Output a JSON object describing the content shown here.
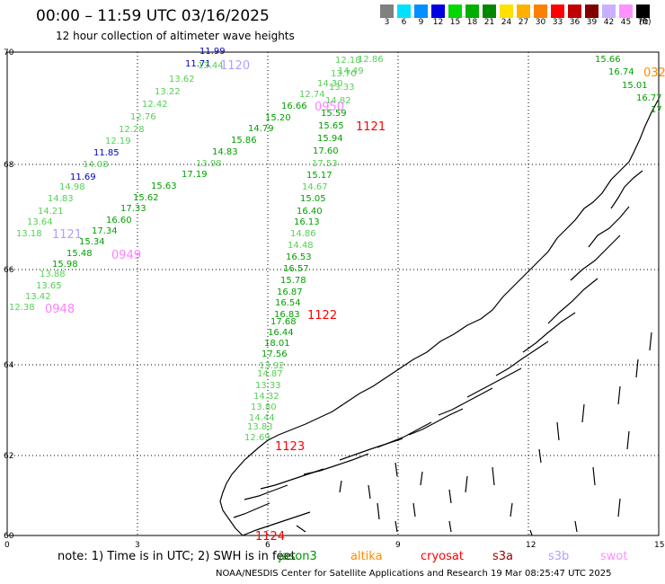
{
  "title": "00:00 – 11:59 UTC 03/16/2025",
  "subtitle": "12 hour collection of altimeter wave heights",
  "colorbar": {
    "unit": "(ft)",
    "swatches": [
      {
        "label": "3",
        "color": "#808080"
      },
      {
        "label": "6",
        "color": "#00e0ff"
      },
      {
        "label": "9",
        "color": "#0090ff"
      },
      {
        "label": "12",
        "color": "#0000e0"
      },
      {
        "label": "15",
        "color": "#00d800"
      },
      {
        "label": "18",
        "color": "#00b000"
      },
      {
        "label": "21",
        "color": "#008800"
      },
      {
        "label": "24",
        "color": "#ffe000"
      },
      {
        "label": "27",
        "color": "#ffb000"
      },
      {
        "label": "30",
        "color": "#ff8000"
      },
      {
        "label": "33",
        "color": "#ff0000"
      },
      {
        "label": "36",
        "color": "#c00000"
      },
      {
        "label": "39",
        "color": "#800000"
      },
      {
        "label": "42",
        "color": "#c8b0ff"
      },
      {
        "label": "45",
        "color": "#ff90ff"
      },
      {
        "label": "70",
        "color": "#000000"
      }
    ]
  },
  "axes": {
    "lat_labels": [
      "70",
      "68",
      "66",
      "64",
      "62",
      "60"
    ],
    "lon_labels": [
      "0",
      "3",
      "6",
      "9",
      "12",
      "15"
    ]
  },
  "note": "note:  1) Time is in UTC;  2) SWH is in feet",
  "satellites": [
    {
      "name": "jason3",
      "color": "#009000"
    },
    {
      "name": "altika",
      "color": "#ff8c00"
    },
    {
      "name": "cryosat",
      "color": "#ff0000"
    },
    {
      "name": "s3a",
      "color": "#a00000"
    },
    {
      "name": "s3b",
      "color": "#b0a0ff"
    },
    {
      "name": "swot",
      "color": "#ff90ff"
    }
  ],
  "footer": "NOAA/NESDIS Center for Satellite Applications and Research    19 Mar 08:25:47 UTC 2025",
  "wave_labels": [
    {
      "text": "11.99",
      "color": "#0000c0"
    },
    {
      "text": "11.71",
      "color": "#0000c0"
    },
    {
      "text": "13.44",
      "color": "#55d055"
    },
    {
      "text": "1120",
      "color": "#b0a0ff",
      "big": true
    },
    {
      "text": "13.62",
      "color": "#55d055"
    },
    {
      "text": "13.22",
      "color": "#55d055"
    },
    {
      "text": "12.42",
      "color": "#55d055"
    },
    {
      "text": "12.76",
      "color": "#55d055"
    },
    {
      "text": "12.28",
      "color": "#55d055"
    },
    {
      "text": "12.19",
      "color": "#55d055"
    },
    {
      "text": "11.85",
      "color": "#0000c0"
    },
    {
      "text": "14.08",
      "color": "#55d055"
    },
    {
      "text": "11.69",
      "color": "#0000c0"
    },
    {
      "text": "14.98",
      "color": "#55d055"
    },
    {
      "text": "14.83",
      "color": "#55d055"
    },
    {
      "text": "14.21",
      "color": "#55d055"
    },
    {
      "text": "13.64",
      "color": "#55d055"
    },
    {
      "text": "13.18",
      "color": "#55d055"
    },
    {
      "text": "1121",
      "color": "#b0a0ff",
      "big": true
    },
    {
      "text": "17.34",
      "color": "#00a000"
    },
    {
      "text": "15.34",
      "color": "#00a000"
    },
    {
      "text": "15.48",
      "color": "#00a000"
    },
    {
      "text": "0949",
      "color": "#ff80ff",
      "big": true
    },
    {
      "text": "15.98",
      "color": "#00a000"
    },
    {
      "text": "13.88",
      "color": "#55d055"
    },
    {
      "text": "13.65",
      "color": "#55d055"
    },
    {
      "text": "13.42",
      "color": "#55d055"
    },
    {
      "text": "12.38",
      "color": "#55d055"
    },
    {
      "text": "0948",
      "color": "#ff80ff",
      "big": true
    },
    {
      "text": "16.60",
      "color": "#00a000"
    },
    {
      "text": "17.33",
      "color": "#00a000"
    },
    {
      "text": "15.62",
      "color": "#00a000"
    },
    {
      "text": "15.63",
      "color": "#00a000"
    },
    {
      "text": "17.19",
      "color": "#00a000"
    },
    {
      "text": "13.98",
      "color": "#55d055"
    },
    {
      "text": "14.83",
      "color": "#00a000"
    },
    {
      "text": "15.86",
      "color": "#00a000"
    },
    {
      "text": "14.79",
      "color": "#00a000"
    },
    {
      "text": "15.20",
      "color": "#00a000"
    },
    {
      "text": "16.66",
      "color": "#00a000"
    },
    {
      "text": "12.74",
      "color": "#55d055"
    },
    {
      "text": "14.30",
      "color": "#55d055"
    },
    {
      "text": "12.18",
      "color": "#55d055"
    },
    {
      "text": "12.86",
      "color": "#55d055"
    },
    {
      "text": "14.49",
      "color": "#55d055"
    },
    {
      "text": "13.70",
      "color": "#55d055"
    },
    {
      "text": "13.33",
      "color": "#55d055"
    },
    {
      "text": "14.82",
      "color": "#55d055"
    },
    {
      "text": "0950",
      "color": "#ff80ff",
      "big": true
    },
    {
      "text": "15.59",
      "color": "#00a000"
    },
    {
      "text": "15.65",
      "color": "#00a000"
    },
    {
      "text": "1121",
      "color": "#ff0000",
      "big": true
    },
    {
      "text": "15.94",
      "color": "#00a000"
    },
    {
      "text": "17.60",
      "color": "#00a000"
    },
    {
      "text": "17.53",
      "color": "#55d055"
    },
    {
      "text": "15.17",
      "color": "#00a000"
    },
    {
      "text": "14.67",
      "color": "#55d055"
    },
    {
      "text": "15.05",
      "color": "#00a000"
    },
    {
      "text": "16.40",
      "color": "#00a000"
    },
    {
      "text": "16.13",
      "color": "#00a000"
    },
    {
      "text": "14.86",
      "color": "#55d055"
    },
    {
      "text": "14.48",
      "color": "#55d055"
    },
    {
      "text": "16.53",
      "color": "#00a000"
    },
    {
      "text": "16.57",
      "color": "#00a000"
    },
    {
      "text": "15.78",
      "color": "#00a000"
    },
    {
      "text": "16.87",
      "color": "#00a000"
    },
    {
      "text": "16.54",
      "color": "#00a000"
    },
    {
      "text": "16.83",
      "color": "#00a000"
    },
    {
      "text": "1122",
      "color": "#ff0000",
      "big": true
    },
    {
      "text": "17.68",
      "color": "#00a000"
    },
    {
      "text": "16.44",
      "color": "#00a000"
    },
    {
      "text": "18.01",
      "color": "#00a000"
    },
    {
      "text": "17.56",
      "color": "#00a000"
    },
    {
      "text": "13.92",
      "color": "#55d055"
    },
    {
      "text": "14.87",
      "color": "#55d055"
    },
    {
      "text": "13.33",
      "color": "#55d055"
    },
    {
      "text": "14.32",
      "color": "#55d055"
    },
    {
      "text": "13.80",
      "color": "#55d055"
    },
    {
      "text": "14.44",
      "color": "#55d055"
    },
    {
      "text": "13.83",
      "color": "#55d055"
    },
    {
      "text": "12.69",
      "color": "#55d055"
    },
    {
      "text": "1123",
      "color": "#ff0000",
      "big": true
    },
    {
      "text": "1124",
      "color": "#ff0000",
      "big": true
    },
    {
      "text": "15.66",
      "color": "#00a000"
    },
    {
      "text": "16.74",
      "color": "#00a000"
    },
    {
      "text": "032",
      "color": "#ff8c00",
      "big": true
    },
    {
      "text": "15.01",
      "color": "#00a000"
    },
    {
      "text": "16.77",
      "color": "#00a000"
    },
    {
      "text": "17",
      "color": "#00a000"
    }
  ]
}
